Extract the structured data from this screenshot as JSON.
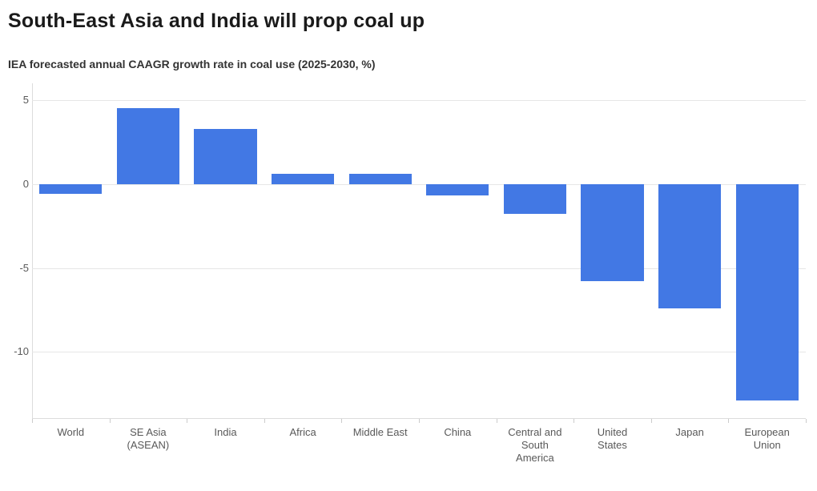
{
  "header": {
    "title": "South-East Asia and India will prop coal up",
    "subtitle": "IEA forecasted annual CAAGR growth rate in coal use (2025-2030, %)"
  },
  "chart_data": {
    "type": "bar",
    "title": "South-East Asia and India will prop coal up",
    "subtitle": "IEA forecasted annual CAAGR growth rate in coal use (2025-2030, %)",
    "categories": [
      "World",
      "SE Asia\n(ASEAN)",
      "India",
      "Africa",
      "Middle East",
      "China",
      "Central and\nSouth\nAmerica",
      "United\nStates",
      "Japan",
      "European\nUnion"
    ],
    "values": [
      -0.6,
      4.5,
      3.3,
      0.6,
      0.6,
      -0.7,
      -1.8,
      -5.8,
      -7.4,
      -12.9
    ],
    "xlabel": "",
    "ylabel": "",
    "ylim": [
      -14,
      6
    ],
    "yticks": [
      5,
      0,
      -5,
      -10
    ],
    "grid": true,
    "legend": false,
    "bar_color": "#4278e4"
  }
}
